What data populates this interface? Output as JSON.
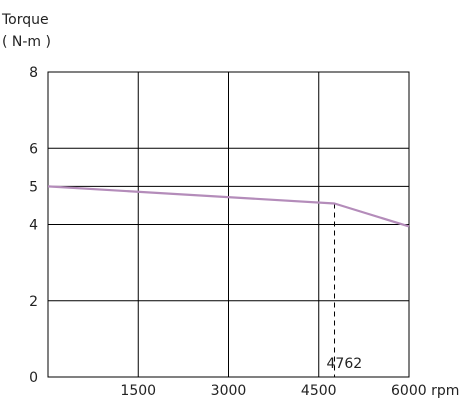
{
  "chart_data": {
    "type": "line",
    "title": "",
    "ylabel": "Torque",
    "yunit": "( N-m )",
    "xunit": "rpm",
    "xlim": [
      0,
      6000
    ],
    "ylim": [
      0,
      8
    ],
    "xticks": [
      1500,
      3000,
      4500,
      6000
    ],
    "xtick_labels": [
      "1500",
      "3000",
      "4500",
      "6000 rpm"
    ],
    "yticks": [
      0,
      2,
      4,
      5,
      6,
      8
    ],
    "ytick_labels": [
      "0",
      "2",
      "4",
      "5",
      "6",
      "8"
    ],
    "grid": true,
    "series": [
      {
        "color": "#b48cba",
        "x": [
          0,
          4762,
          6000
        ],
        "y": [
          5.0,
          4.55,
          3.95
        ]
      }
    ],
    "annotations": [
      {
        "type": "vline-dashed",
        "x": 4762,
        "y_from": 0,
        "y_to": 4.55,
        "label": "4762"
      }
    ],
    "colors": {
      "series": "#b48cba",
      "grid": "#000000",
      "text": "#222222"
    }
  }
}
